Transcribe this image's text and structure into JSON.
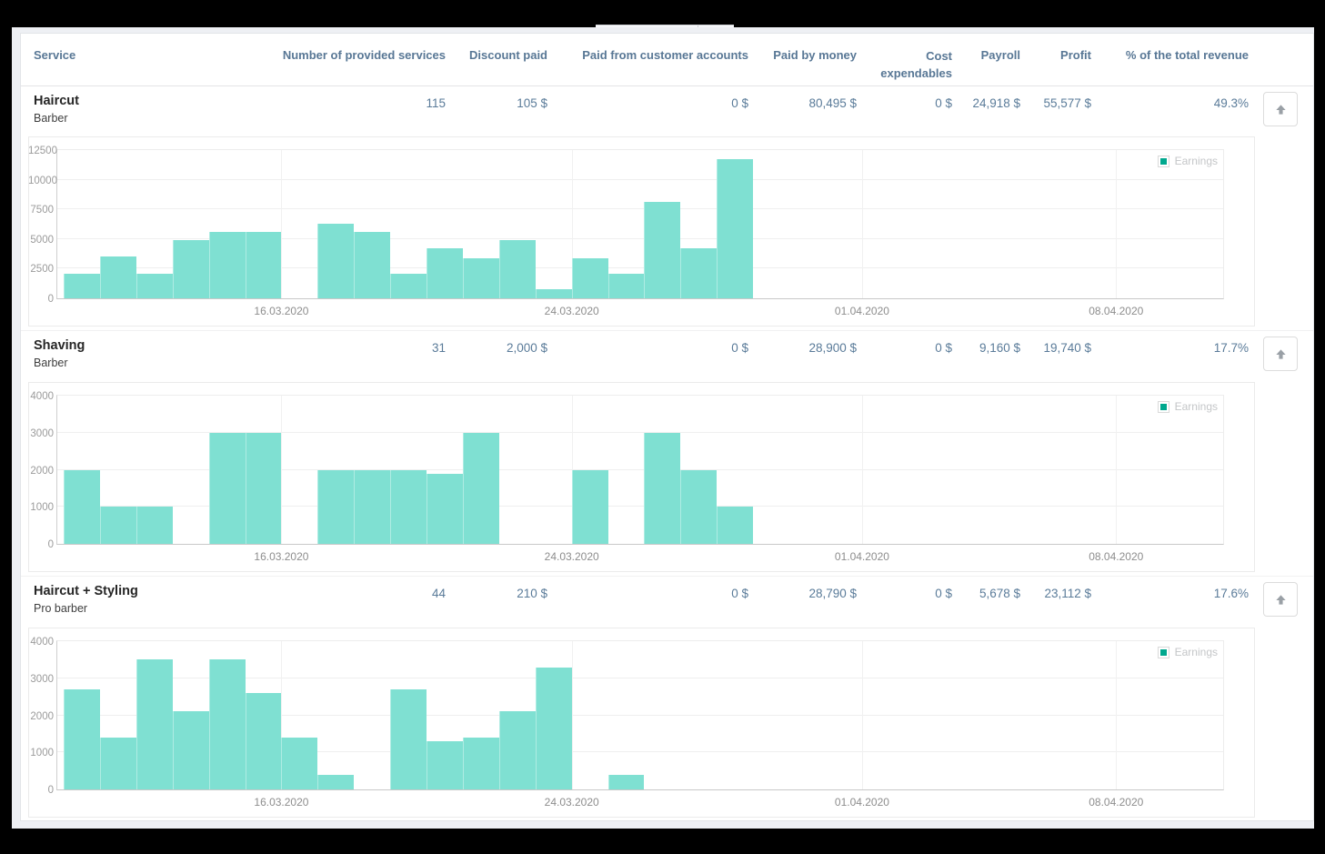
{
  "table": {
    "columns": {
      "service": "Service",
      "count": "Number of provided services",
      "discount": "Discount paid",
      "paid_from_accounts": "Paid from customer accounts",
      "paid_by_money": "Paid by money",
      "cost_expendables": "Cost expendables",
      "payroll": "Payroll",
      "profit": "Profit",
      "revenue_pct": "% of the total revenue"
    },
    "rows": [
      {
        "service": "Haircut",
        "staff": "Barber",
        "count": "115",
        "discount": "105 $",
        "paid_from_accounts": "0 $",
        "paid_by_money": "80,495 $",
        "cost_expendables": "0 $",
        "payroll": "24,918 $",
        "profit": "55,577 $",
        "revenue_pct": "49.3%"
      },
      {
        "service": "Shaving",
        "staff": "Barber",
        "count": "31",
        "discount": "2,000 $",
        "paid_from_accounts": "0 $",
        "paid_by_money": "28,900 $",
        "cost_expendables": "0 $",
        "payroll": "9,160 $",
        "profit": "19,740 $",
        "revenue_pct": "17.7%"
      },
      {
        "service": "Haircut + Styling",
        "staff": "Pro barber",
        "count": "44",
        "discount": "210 $",
        "paid_from_accounts": "0 $",
        "paid_by_money": "28,790 $",
        "cost_expendables": "0 $",
        "payroll": "5,678 $",
        "profit": "23,112 $",
        "revenue_pct": "17.6%"
      }
    ]
  },
  "icons": {
    "row_action": "arrow-up"
  },
  "legend": {
    "label": "Earnings",
    "swatch_color": "#00a88e"
  },
  "bar_color": "#7fe0d2",
  "chart_data": [
    {
      "type": "bar",
      "title": "Haircut — Earnings",
      "xlabel": "",
      "ylabel": "",
      "categories": [
        "10.03.2020",
        "11.03.2020",
        "12.03.2020",
        "13.03.2020",
        "14.03.2020",
        "15.03.2020",
        "16.03.2020",
        "17.03.2020",
        "18.03.2020",
        "19.03.2020",
        "20.03.2020",
        "21.03.2020",
        "22.03.2020",
        "23.03.2020",
        "24.03.2020",
        "25.03.2020",
        "26.03.2020",
        "27.03.2020",
        "28.03.2020"
      ],
      "series": [
        {
          "name": "Earnings",
          "values": [
            2100,
            3500,
            2100,
            4900,
            5600,
            5600,
            0,
            6300,
            5600,
            2100,
            4200,
            3400,
            4900,
            800,
            3400,
            2100,
            8100,
            4200,
            11700
          ]
        }
      ],
      "ylim": [
        0,
        12500
      ],
      "yticks": [
        0,
        2500,
        5000,
        7500,
        10000,
        12500
      ],
      "x_ticks": [
        {
          "label": "16.03.2020",
          "day": 6
        },
        {
          "label": "24.03.2020",
          "day": 14
        },
        {
          "label": "01.04.2020",
          "day": 22
        },
        {
          "label": "08.04.2020",
          "day": 29
        }
      ],
      "axis": {
        "days_shown": 32.125,
        "offset_days": 0.175
      },
      "grid": true,
      "legend_position": "top-right"
    },
    {
      "type": "bar",
      "title": "Shaving — Earnings",
      "xlabel": "",
      "ylabel": "",
      "categories": [
        "10.03.2020",
        "11.03.2020",
        "12.03.2020",
        "13.03.2020",
        "14.03.2020",
        "15.03.2020",
        "16.03.2020",
        "17.03.2020",
        "18.03.2020",
        "19.03.2020",
        "20.03.2020",
        "21.03.2020",
        "22.03.2020",
        "23.03.2020",
        "24.03.2020",
        "25.03.2020",
        "26.03.2020",
        "27.03.2020",
        "28.03.2020"
      ],
      "series": [
        {
          "name": "Earnings",
          "values": [
            2000,
            1000,
            1000,
            0,
            3000,
            3000,
            0,
            2000,
            2000,
            2000,
            1900,
            3000,
            0,
            0,
            2000,
            0,
            3000,
            2000,
            1000
          ]
        }
      ],
      "ylim": [
        0,
        4000
      ],
      "yticks": [
        0,
        1000,
        2000,
        3000,
        4000
      ],
      "x_ticks": [
        {
          "label": "16.03.2020",
          "day": 6
        },
        {
          "label": "24.03.2020",
          "day": 14
        },
        {
          "label": "01.04.2020",
          "day": 22
        },
        {
          "label": "08.04.2020",
          "day": 29
        }
      ],
      "axis": {
        "days_shown": 32.125,
        "offset_days": 0.175
      },
      "grid": true,
      "legend_position": "top-right"
    },
    {
      "type": "bar",
      "title": "Haircut + Styling — Earnings",
      "xlabel": "",
      "ylabel": "",
      "categories": [
        "10.03.2020",
        "11.03.2020",
        "12.03.2020",
        "13.03.2020",
        "14.03.2020",
        "15.03.2020",
        "16.03.2020",
        "17.03.2020",
        "18.03.2020",
        "19.03.2020",
        "20.03.2020",
        "21.03.2020",
        "22.03.2020",
        "23.03.2020",
        "24.03.2020",
        "25.03.2020",
        "26.03.2020",
        "27.03.2020",
        "28.03.2020"
      ],
      "series": [
        {
          "name": "Earnings",
          "values": [
            2700,
            1400,
            3500,
            2100,
            3500,
            2600,
            1400,
            400,
            0,
            2700,
            1300,
            1400,
            2100,
            3300,
            0,
            400,
            0,
            0,
            0
          ]
        }
      ],
      "ylim": [
        0,
        4000
      ],
      "yticks": [
        0,
        1000,
        2000,
        3000,
        4000
      ],
      "x_ticks": [
        {
          "label": "16.03.2020",
          "day": 6
        },
        {
          "label": "24.03.2020",
          "day": 14
        },
        {
          "label": "01.04.2020",
          "day": 22
        },
        {
          "label": "08.04.2020",
          "day": 29
        }
      ],
      "axis": {
        "days_shown": 32.125,
        "offset_days": 0.175
      },
      "grid": true,
      "legend_position": "top-right"
    }
  ]
}
